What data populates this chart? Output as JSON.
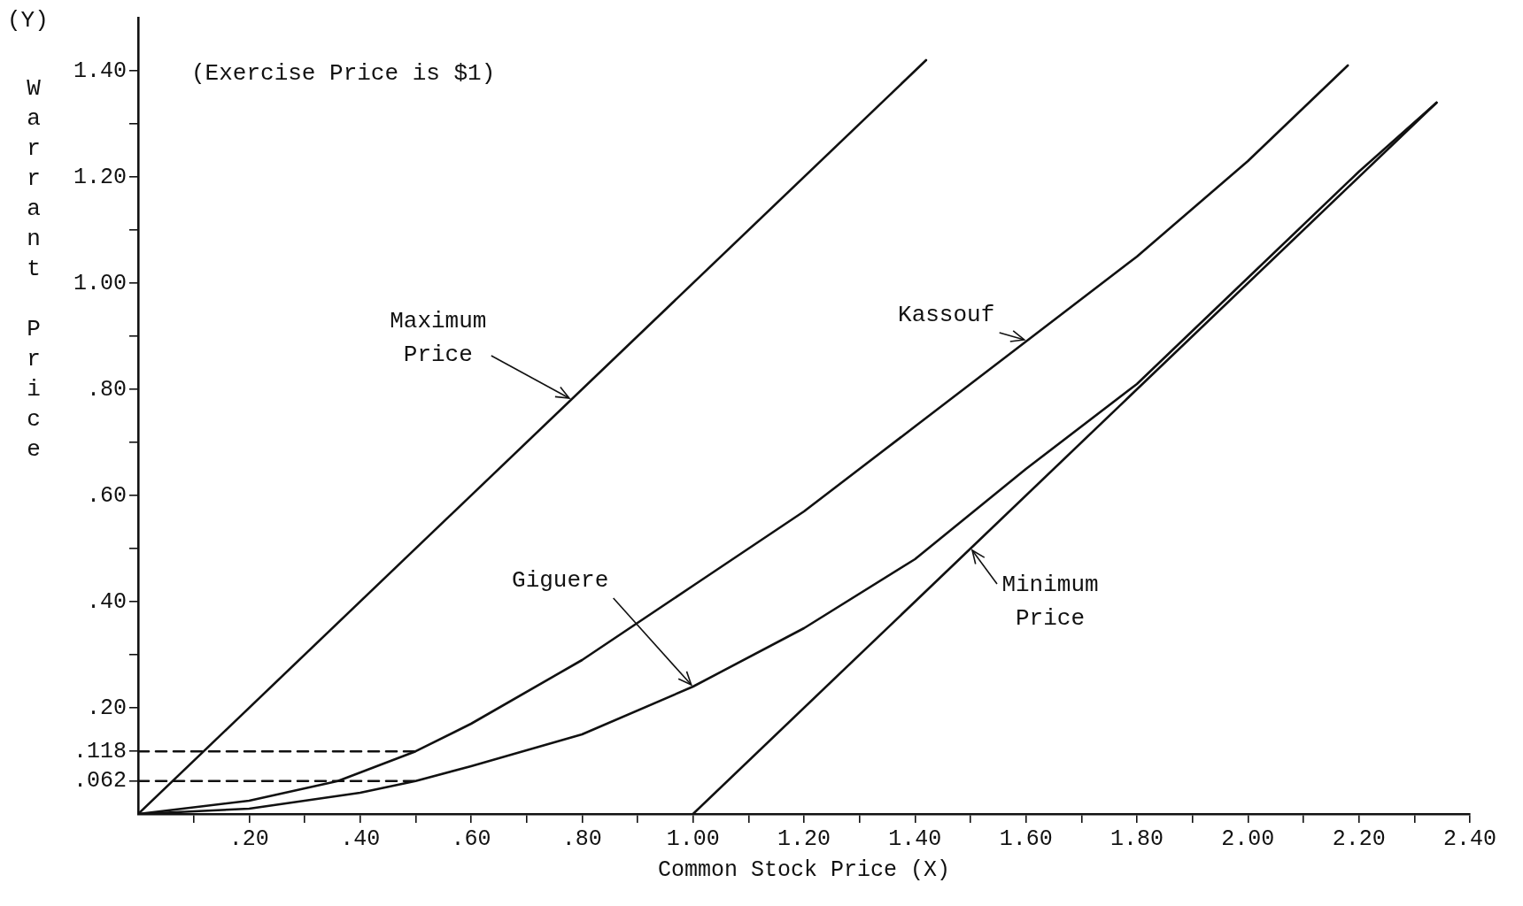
{
  "chart_data": {
    "type": "line",
    "xlabel": "Common Stock Price (X)",
    "ylabel": "Warrant Price",
    "xlim": [
      0,
      2.4
    ],
    "ylim": [
      0,
      1.5
    ],
    "xticks": [
      {
        "value": 0.1,
        "label": null
      },
      {
        "value": 0.2,
        "label": ".20"
      },
      {
        "value": 0.3,
        "label": null
      },
      {
        "value": 0.4,
        "label": ".40"
      },
      {
        "value": 0.5,
        "label": null
      },
      {
        "value": 0.6,
        "label": ".60"
      },
      {
        "value": 0.7,
        "label": null
      },
      {
        "value": 0.8,
        "label": ".80"
      },
      {
        "value": 0.9,
        "label": null
      },
      {
        "value": 1.0,
        "label": "1.00"
      },
      {
        "value": 1.1,
        "label": null
      },
      {
        "value": 1.2,
        "label": "1.20"
      },
      {
        "value": 1.3,
        "label": null
      },
      {
        "value": 1.4,
        "label": "1.40"
      },
      {
        "value": 1.5,
        "label": null
      },
      {
        "value": 1.6,
        "label": "1.60"
      },
      {
        "value": 1.7,
        "label": null
      },
      {
        "value": 1.8,
        "label": "1.80"
      },
      {
        "value": 1.9,
        "label": null
      },
      {
        "value": 2.0,
        "label": "2.00"
      },
      {
        "value": 2.1,
        "label": null
      },
      {
        "value": 2.2,
        "label": "2.20"
      },
      {
        "value": 2.3,
        "label": null
      },
      {
        "value": 2.4,
        "label": "2.40"
      }
    ],
    "yticks": [
      {
        "value": 0.062,
        "label": ".062"
      },
      {
        "value": 0.118,
        "label": ".118"
      },
      {
        "value": 0.2,
        "label": ".20"
      },
      {
        "value": 0.3,
        "label": null
      },
      {
        "value": 0.4,
        "label": ".40"
      },
      {
        "value": 0.5,
        "label": null
      },
      {
        "value": 0.6,
        "label": ".60"
      },
      {
        "value": 0.7,
        "label": null
      },
      {
        "value": 0.8,
        "label": ".80"
      },
      {
        "value": 0.9,
        "label": null
      },
      {
        "value": 1.0,
        "label": "1.00"
      },
      {
        "value": 1.1,
        "label": null
      },
      {
        "value": 1.2,
        "label": "1.20"
      },
      {
        "value": 1.3,
        "label": null
      },
      {
        "value": 1.4,
        "label": "1.40"
      }
    ],
    "grid": false,
    "legend": false,
    "marker": "none",
    "series": [
      {
        "color": "#111111",
        "x": [
          0,
          1.42
        ],
        "values": [
          0,
          1.42
        ]
      },
      {
        "color": "#111111",
        "x": [
          0,
          0.2,
          0.36,
          0.5,
          0.6,
          0.8,
          1.0,
          1.2,
          1.4,
          1.6,
          1.8,
          2.0,
          2.18
        ],
        "values": [
          0,
          0.025,
          0.062,
          0.118,
          0.17,
          0.29,
          0.43,
          0.57,
          0.73,
          0.89,
          1.05,
          1.23,
          1.41
        ]
      },
      {
        "color": "#111111",
        "x": [
          0,
          0.2,
          0.4,
          0.5,
          0.6,
          0.8,
          1.0,
          1.2,
          1.4,
          1.6,
          1.8,
          2.0,
          2.2,
          2.34
        ],
        "values": [
          0,
          0.01,
          0.04,
          0.062,
          0.09,
          0.15,
          0.24,
          0.35,
          0.48,
          0.65,
          0.81,
          1.01,
          1.21,
          1.34
        ]
      },
      {
        "color": "#111111",
        "x": [
          1.0,
          2.34
        ],
        "values": [
          0,
          1.34
        ]
      },
      {
        "color": "#111111",
        "x": [
          0,
          0.5
        ],
        "values": [
          0.118,
          0.118
        ],
        "line_style": "dashed"
      },
      {
        "color": "#111111",
        "x": [
          0,
          0.5
        ],
        "values": [
          0.062,
          0.062
        ],
        "line_style": "dashed"
      }
    ],
    "annotations": [
      "(Y)",
      "(Exercise Price is $1)",
      {
        "text": "Maximum Price",
        "x": 0.78,
        "y": 0.78
      },
      {
        "text": "Kassouf",
        "x": 1.6,
        "y": 0.89
      },
      {
        "text": "Giguere",
        "x": 1.0,
        "y": 0.24
      },
      {
        "text": "Minimum Price",
        "x": 1.5,
        "y": 0.5
      }
    ]
  }
}
